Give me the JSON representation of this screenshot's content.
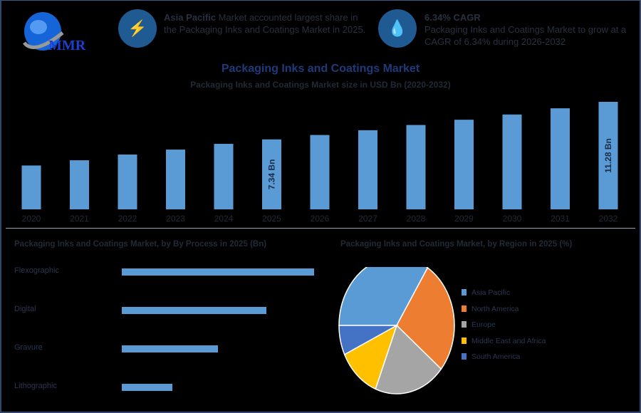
{
  "logo": {
    "text": "MMR"
  },
  "highlights": [
    {
      "icon": "lightning-icon",
      "bold": "Asia Pacific",
      "text": " Market accounted largest share in the Packaging Inks and Coatings Market in 2025."
    },
    {
      "icon": "drop-hand-icon",
      "bold": "6.34% CAGR",
      "text": "Packaging Inks and Coatings Market to grow at a CAGR of 6.34% during 2026-2032"
    }
  ],
  "colors": {
    "bar": "#5b9bd5",
    "circle": "#1f5a93"
  },
  "chart_data": [
    {
      "type": "bar",
      "title": "Packaging Inks and Coatings Market",
      "subtitle": "Packaging Inks and Coatings Market size in USD Bn (2020-2032)",
      "categories": [
        "2020",
        "2021",
        "2022",
        "2023",
        "2024",
        "2025",
        "2026",
        "2027",
        "2028",
        "2029",
        "2030",
        "2031",
        "2032"
      ],
      "values": [
        4.6,
        5.15,
        5.75,
        6.27,
        6.87,
        7.34,
        7.8,
        8.3,
        8.85,
        9.4,
        9.95,
        10.6,
        11.28
      ],
      "data_labels": {
        "2025": "7.34 Bn",
        "2032": "11.28 Bn"
      },
      "ylim": [
        0,
        11.28
      ]
    },
    {
      "type": "bar",
      "orientation": "horizontal",
      "title": "Packaging Inks and Coatings Market, by By Process in 2025 (Bn)",
      "categories": [
        "Flexographic",
        "Digital",
        "Gravure",
        "Lithographic"
      ],
      "values": [
        2.92,
        2.19,
        1.46,
        0.77
      ],
      "xlim": [
        0,
        2.92
      ]
    },
    {
      "type": "pie",
      "title": "Packaging Inks and Coatings Market, by Region in 2025 (%)",
      "labels": [
        "Asia Pacific",
        "North America",
        "Europe",
        "Middle East and Africa",
        "South America"
      ],
      "values": [
        34,
        27,
        20,
        12,
        7
      ],
      "colors": [
        "#5b9bd5",
        "#ed7d31",
        "#a5a5a5",
        "#ffc000",
        "#4472c4"
      ],
      "legend": "right"
    }
  ]
}
